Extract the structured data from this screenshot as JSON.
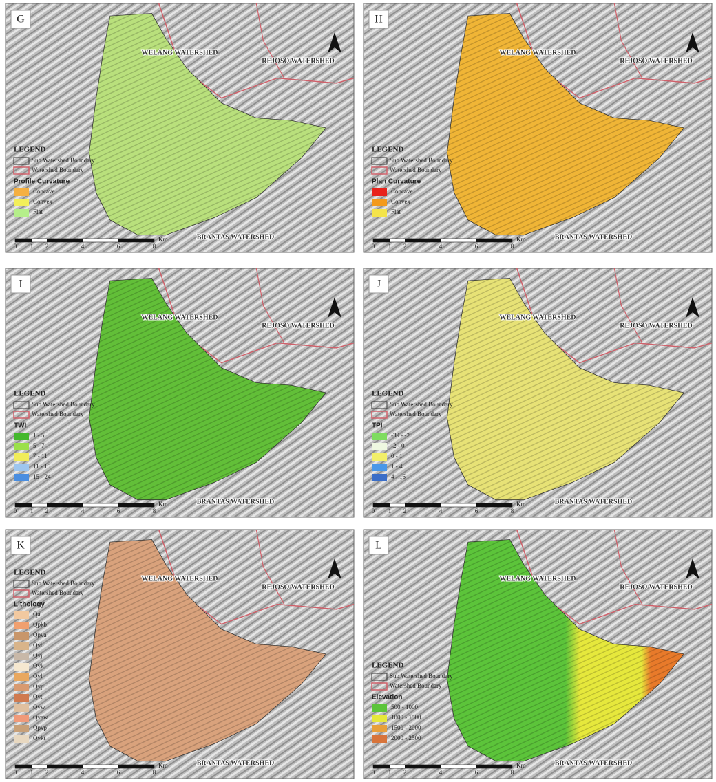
{
  "common": {
    "welang": "WELANG WATERSHED",
    "rejoso": "REJOSO WATERSHED",
    "brantas": "BRANTAS WATERSHED",
    "legend": "LEGEND",
    "sub_boundary": "Sub Watershed Boundary",
    "boundary": "Watershed Boundary",
    "scale": [
      "0",
      "1",
      "2",
      "4",
      "6",
      "8"
    ],
    "unit": "Km"
  },
  "panels": [
    {
      "label": "G",
      "legend_title": "Profile Curvature",
      "items": [
        "Concave",
        "Convex",
        "Flat"
      ]
    },
    {
      "label": "H",
      "legend_title": "Plan Curvature",
      "items": [
        "Concave",
        "Convex",
        "Flat"
      ]
    },
    {
      "label": "I",
      "legend_title": "TWI",
      "items": [
        "1 - 5",
        "5 - 7",
        "7 - 11",
        "11 - 15",
        "15 - 24"
      ]
    },
    {
      "label": "J",
      "legend_title": "TPI",
      "items": [
        "-39 - -2",
        "-2 - 0",
        "0 - 1",
        "1 - 4",
        "4 - 16"
      ]
    },
    {
      "label": "K",
      "legend_title": "Lithology",
      "items": [
        "Qa",
        "Qpkb",
        "Qpva",
        "Qvb",
        "Qvj",
        "Qvk",
        "Qvl",
        "Qvp",
        "Qvt",
        "Qvw",
        "Qvaw",
        "Qpvp",
        "Qvkt"
      ]
    },
    {
      "label": "L",
      "legend_title": "Elevation",
      "items": [
        "500 - 1000",
        "1000 - 1500",
        "1500 - 2000",
        "2000 - 2500"
      ]
    }
  ]
}
